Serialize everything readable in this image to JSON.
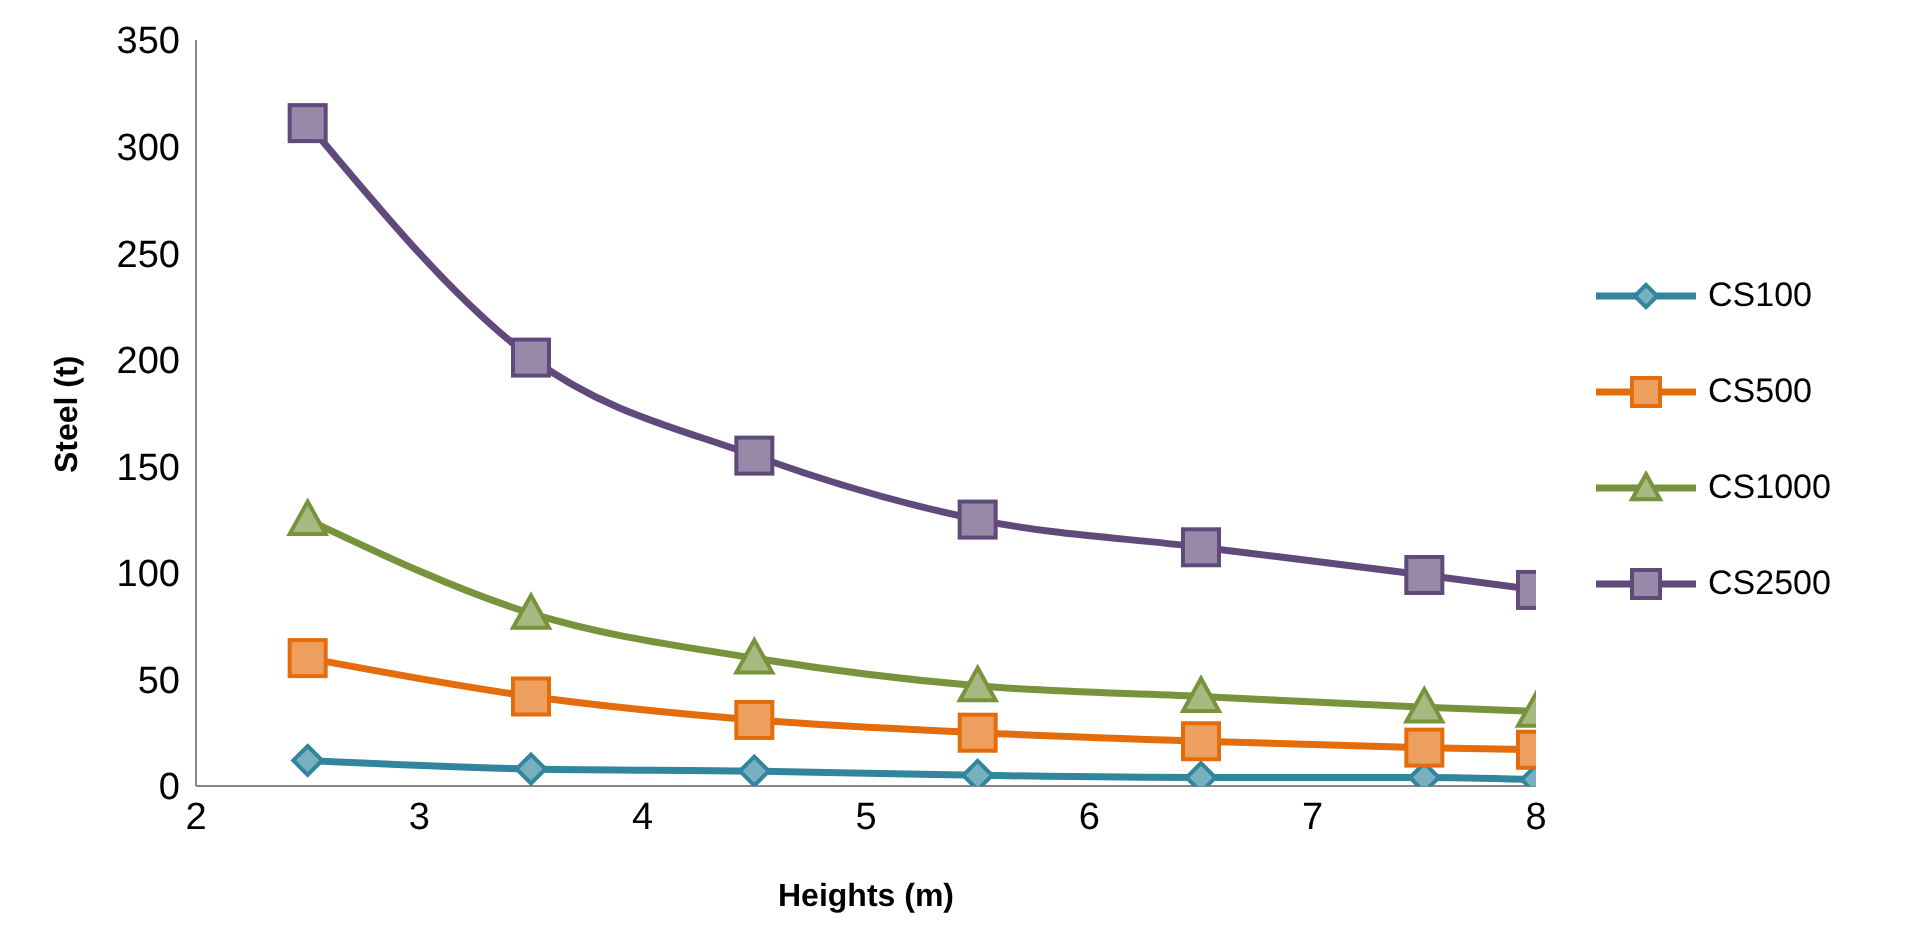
{
  "chart_data": {
    "type": "line",
    "xlabel": "Heights (m)",
    "ylabel": "Steel (t)",
    "x": [
      2.5,
      3.5,
      4.5,
      5.5,
      6.5,
      7.5,
      8
    ],
    "series": [
      {
        "name": "CS100",
        "color": "#31859c",
        "marker": "diamond",
        "values": [
          12,
          8,
          7,
          5,
          4,
          4,
          3
        ]
      },
      {
        "name": "CS500",
        "color": "#e46c0a",
        "marker": "square",
        "values": [
          60,
          42,
          31,
          25,
          21,
          18,
          17
        ]
      },
      {
        "name": "CS1000",
        "color": "#77933c",
        "marker": "triangle",
        "values": [
          125,
          81,
          60,
          47,
          42,
          37,
          35
        ]
      },
      {
        "name": "CS2500",
        "color": "#604a7b",
        "marker": "square",
        "values": [
          311,
          201,
          155,
          125,
          112,
          99,
          92
        ]
      }
    ],
    "xlim": [
      2,
      8
    ],
    "xticks": [
      2,
      3,
      4,
      5,
      6,
      7,
      8
    ],
    "ylim": [
      0,
      350
    ],
    "yticks": [
      0,
      50,
      100,
      150,
      200,
      250,
      300,
      350
    ],
    "grid": false,
    "legend": "right"
  }
}
